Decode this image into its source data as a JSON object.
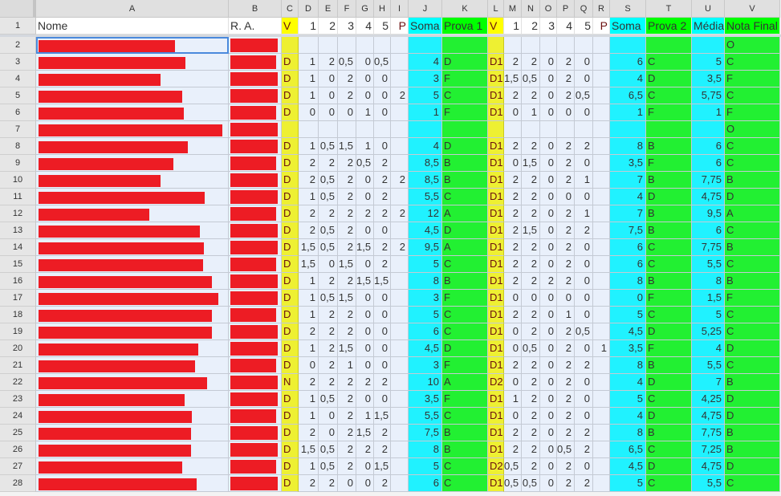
{
  "sheet": {
    "column_letters": [
      "A",
      "B",
      "C",
      "D",
      "E",
      "F",
      "G",
      "H",
      "I",
      "J",
      "K",
      "L",
      "M",
      "N",
      "O",
      "P",
      "Q",
      "R",
      "S",
      "T",
      "U",
      "V"
    ],
    "header_row_number": "1",
    "header_labels": [
      "Nome",
      "R. A.",
      "V",
      "1",
      "2",
      "3",
      "4",
      "5",
      "P",
      "Soma",
      "Prova 1",
      "V",
      "1",
      "2",
      "3",
      "4",
      "5",
      "P",
      "Soma",
      "Prova 2",
      "Média",
      "Nota Final"
    ],
    "rows": [
      {
        "n": "2",
        "cells": [
          "",
          "",
          "",
          "",
          "",
          "",
          "",
          "",
          "",
          "",
          "",
          "",
          "",
          "",
          "",
          "",
          "",
          "",
          "",
          "O"
        ]
      },
      {
        "n": "3",
        "cells": [
          "D",
          "1",
          "2",
          "0,5",
          "0",
          "0,5",
          "",
          "4",
          "D",
          "D1",
          "2",
          "2",
          "0",
          "2",
          "0",
          "",
          "6",
          "C",
          "5",
          "C"
        ]
      },
      {
        "n": "4",
        "cells": [
          "D",
          "1",
          "0",
          "2",
          "0",
          "0",
          "",
          "3",
          "F",
          "D1",
          "1,5",
          "0,5",
          "0",
          "2",
          "0",
          "",
          "4",
          "D",
          "3,5",
          "F"
        ]
      },
      {
        "n": "5",
        "cells": [
          "D",
          "1",
          "0",
          "2",
          "0",
          "0",
          "2",
          "5",
          "C",
          "D1",
          "2",
          "2",
          "0",
          "2",
          "0,5",
          "",
          "6,5",
          "C",
          "5,75",
          "C"
        ]
      },
      {
        "n": "6",
        "cells": [
          "D",
          "0",
          "0",
          "0",
          "1",
          "0",
          "",
          "1",
          "F",
          "D1",
          "0",
          "1",
          "0",
          "0",
          "0",
          "",
          "1",
          "F",
          "1",
          "F"
        ]
      },
      {
        "n": "7",
        "cells": [
          "",
          "",
          "",
          "",
          "",
          "",
          "",
          "",
          "",
          "",
          "",
          "",
          "",
          "",
          "",
          "",
          "",
          "",
          "",
          "O"
        ]
      },
      {
        "n": "8",
        "cells": [
          "D",
          "1",
          "0,5",
          "1,5",
          "1",
          "0",
          "",
          "4",
          "D",
          "D1",
          "2",
          "2",
          "0",
          "2",
          "2",
          "",
          "8",
          "B",
          "6",
          "C"
        ]
      },
      {
        "n": "9",
        "cells": [
          "D",
          "2",
          "2",
          "2",
          "0,5",
          "2",
          "",
          "8,5",
          "B",
          "D1",
          "0",
          "1,5",
          "0",
          "2",
          "0",
          "",
          "3,5",
          "F",
          "6",
          "C"
        ]
      },
      {
        "n": "10",
        "cells": [
          "D",
          "2",
          "0,5",
          "2",
          "0",
          "2",
          "2",
          "8,5",
          "B",
          "D1",
          "2",
          "2",
          "0",
          "2",
          "1",
          "",
          "7",
          "B",
          "7,75",
          "B"
        ]
      },
      {
        "n": "11",
        "cells": [
          "D",
          "1",
          "0,5",
          "2",
          "0",
          "2",
          "",
          "5,5",
          "C",
          "D1",
          "2",
          "2",
          "0",
          "0",
          "0",
          "",
          "4",
          "D",
          "4,75",
          "D"
        ]
      },
      {
        "n": "12",
        "cells": [
          "D",
          "2",
          "2",
          "2",
          "2",
          "2",
          "2",
          "12",
          "A",
          "D1",
          "2",
          "2",
          "0",
          "2",
          "1",
          "",
          "7",
          "B",
          "9,5",
          "A"
        ]
      },
      {
        "n": "13",
        "cells": [
          "D",
          "2",
          "0,5",
          "2",
          "0",
          "0",
          "",
          "4,5",
          "D",
          "D1",
          "2",
          "1,5",
          "0",
          "2",
          "2",
          "",
          "7,5",
          "B",
          "6",
          "C"
        ]
      },
      {
        "n": "14",
        "cells": [
          "D",
          "1,5",
          "0,5",
          "2",
          "1,5",
          "2",
          "2",
          "9,5",
          "A",
          "D1",
          "2",
          "2",
          "0",
          "2",
          "0",
          "",
          "6",
          "C",
          "7,75",
          "B"
        ]
      },
      {
        "n": "15",
        "cells": [
          "D",
          "1,5",
          "0",
          "1,5",
          "0",
          "2",
          "",
          "5",
          "C",
          "D1",
          "2",
          "2",
          "0",
          "2",
          "0",
          "",
          "6",
          "C",
          "5,5",
          "C"
        ]
      },
      {
        "n": "16",
        "cells": [
          "D",
          "1",
          "2",
          "2",
          "1,5",
          "1,5",
          "",
          "8",
          "B",
          "D1",
          "2",
          "2",
          "2",
          "2",
          "0",
          "",
          "8",
          "B",
          "8",
          "B"
        ]
      },
      {
        "n": "17",
        "cells": [
          "D",
          "1",
          "0,5",
          "1,5",
          "0",
          "0",
          "",
          "3",
          "F",
          "D1",
          "0",
          "0",
          "0",
          "0",
          "0",
          "",
          "0",
          "F",
          "1,5",
          "F"
        ]
      },
      {
        "n": "18",
        "cells": [
          "D",
          "1",
          "2",
          "2",
          "0",
          "0",
          "",
          "5",
          "C",
          "D1",
          "2",
          "2",
          "0",
          "1",
          "0",
          "",
          "5",
          "C",
          "5",
          "C"
        ]
      },
      {
        "n": "19",
        "cells": [
          "D",
          "2",
          "2",
          "2",
          "0",
          "0",
          "",
          "6",
          "C",
          "D1",
          "0",
          "2",
          "0",
          "2",
          "0,5",
          "",
          "4,5",
          "D",
          "5,25",
          "C"
        ]
      },
      {
        "n": "20",
        "cells": [
          "D",
          "1",
          "2",
          "1,5",
          "0",
          "0",
          "",
          "4,5",
          "D",
          "D1",
          "0",
          "0,5",
          "0",
          "2",
          "0",
          "1",
          "3,5",
          "F",
          "4",
          "D"
        ]
      },
      {
        "n": "21",
        "cells": [
          "D",
          "0",
          "2",
          "1",
          "0",
          "0",
          "",
          "3",
          "F",
          "D1",
          "2",
          "2",
          "0",
          "2",
          "2",
          "",
          "8",
          "B",
          "5,5",
          "C"
        ]
      },
      {
        "n": "22",
        "cells": [
          "N",
          "2",
          "2",
          "2",
          "2",
          "2",
          "",
          "10",
          "A",
          "D2",
          "0",
          "2",
          "0",
          "2",
          "0",
          "",
          "4",
          "D",
          "7",
          "B"
        ]
      },
      {
        "n": "23",
        "cells": [
          "D",
          "1",
          "0,5",
          "2",
          "0",
          "0",
          "",
          "3,5",
          "F",
          "D1",
          "1",
          "2",
          "0",
          "2",
          "0",
          "",
          "5",
          "C",
          "4,25",
          "D"
        ]
      },
      {
        "n": "24",
        "cells": [
          "D",
          "1",
          "0",
          "2",
          "1",
          "1,5",
          "",
          "5,5",
          "C",
          "D1",
          "0",
          "2",
          "0",
          "2",
          "0",
          "",
          "4",
          "D",
          "4,75",
          "D"
        ]
      },
      {
        "n": "25",
        "cells": [
          "D",
          "2",
          "0",
          "2",
          "1,5",
          "2",
          "",
          "7,5",
          "B",
          "D1",
          "2",
          "2",
          "0",
          "2",
          "2",
          "",
          "8",
          "B",
          "7,75",
          "B"
        ]
      },
      {
        "n": "26",
        "cells": [
          "D",
          "1,5",
          "0,5",
          "2",
          "2",
          "2",
          "",
          "8",
          "B",
          "D1",
          "2",
          "2",
          "0",
          "0,5",
          "2",
          "",
          "6,5",
          "C",
          "7,25",
          "B"
        ]
      },
      {
        "n": "27",
        "cells": [
          "D",
          "1",
          "0,5",
          "2",
          "0",
          "1,5",
          "",
          "5",
          "C",
          "D2",
          "0,5",
          "2",
          "0",
          "2",
          "0",
          "",
          "4,5",
          "D",
          "4,75",
          "D"
        ]
      },
      {
        "n": "28",
        "cells": [
          "D",
          "2",
          "2",
          "0",
          "0",
          "2",
          "",
          "6",
          "C",
          "D1",
          "0,5",
          "0,5",
          "0",
          "2",
          "2",
          "",
          "5",
          "C",
          "5,5",
          "C"
        ]
      }
    ],
    "colors": {
      "yellow_header": "#ffff00",
      "yellow_body": "#eef032",
      "cyan_header": "#00ffff",
      "cyan_body": "#20f2ff",
      "green_header": "#00ff00",
      "green_body": "#22f032",
      "blank_body": "#e9f0fb",
      "redaction": "#ed1c24",
      "selection": "#4a89dc"
    }
  }
}
